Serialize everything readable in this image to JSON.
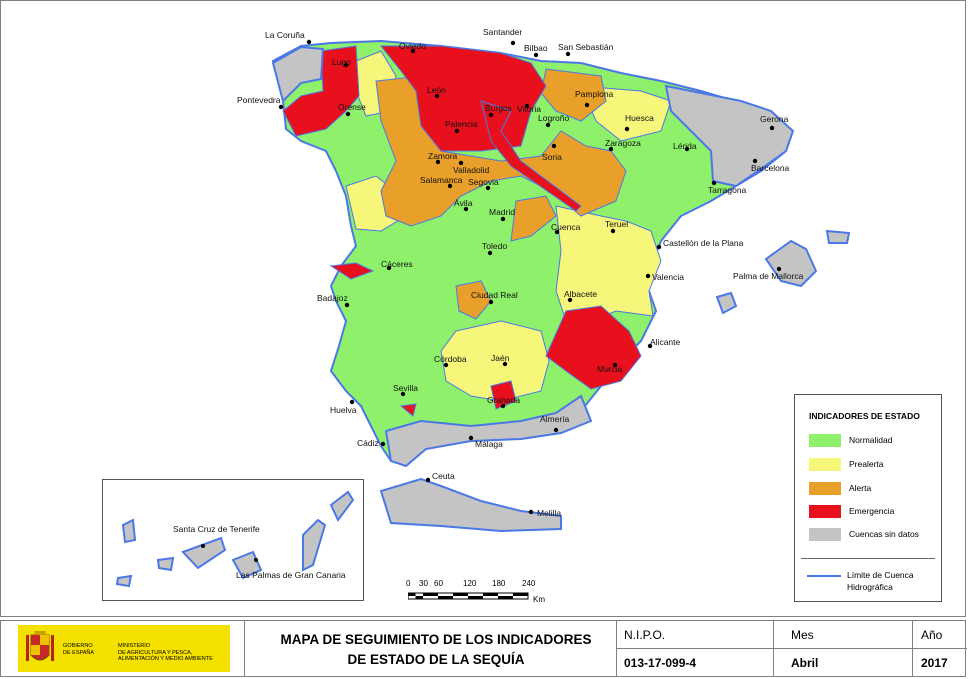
{
  "legend": {
    "title": "INDICADORES DE ESTADO",
    "items": [
      {
        "label": "Normalidad",
        "color": "#8ef06b"
      },
      {
        "label": "Prealerta",
        "color": "#f6f67a"
      },
      {
        "label": "Alerta",
        "color": "#e9a02b"
      },
      {
        "label": "Emergencia",
        "color": "#e8101c"
      },
      {
        "label": "Cuencas sin datos",
        "color": "#c4c4c4"
      }
    ],
    "boundary_line1": "Límite de Cuenca",
    "boundary_line2": "Hidrográfica",
    "boundary_color": "#4b78e6"
  },
  "cities": [
    "La Coruña",
    "Santander",
    "Oviedo",
    "Bilbao",
    "San Sebastián",
    "Lugo",
    "Pontevedra",
    "Orense",
    "León",
    "Vitoria",
    "Pamplona",
    "Burgos",
    "Logroño",
    "Palencia",
    "Huesca",
    "Gerona",
    "Zamora",
    "Valladolid",
    "Soria",
    "Zaragoza",
    "Lérida",
    "Barcelona",
    "Salamanca",
    "Segovia",
    "Tarragona",
    "Ávila",
    "Madrid",
    "Teruel",
    "Cuenca",
    "Castellón de la Plana",
    "Toledo",
    "Cáceres",
    "Palma de Mallorca",
    "Valencia",
    "Badajoz",
    "Ciudad Real",
    "Albacete",
    "Alicante",
    "Córdoba",
    "Jaén",
    "Murcia",
    "Sevilla",
    "Granada",
    "Huelva",
    "Almería",
    "Cádiz",
    "Málaga",
    "Ceuta",
    "Melilla",
    "Santa Cruz de Tenerife",
    "Las Palmas de Gran Canaria"
  ],
  "scale": {
    "ticks": [
      "0",
      "30",
      "60",
      "120",
      "180",
      "240"
    ],
    "unit": "Km"
  },
  "footer": {
    "gov": [
      "GOBIERNO",
      "DE ESPAÑA"
    ],
    "ministry": [
      "MINISTERIO",
      "DE AGRICULTURA Y PESCA,",
      "ALIMENTACIÓN Y MEDIO AMBIENTE"
    ],
    "title_line1": "MAPA DE SEGUIMIENTO DE LOS INDICADORES",
    "title_line2": "DE ESTADO DE LA SEQUÍA",
    "nipo_label": "N.I.P.O.",
    "nipo_value": "013-17-099-4",
    "mes_label": "Mes",
    "mes_value": "Abril",
    "ano_label": "Año",
    "ano_value": "2017"
  }
}
